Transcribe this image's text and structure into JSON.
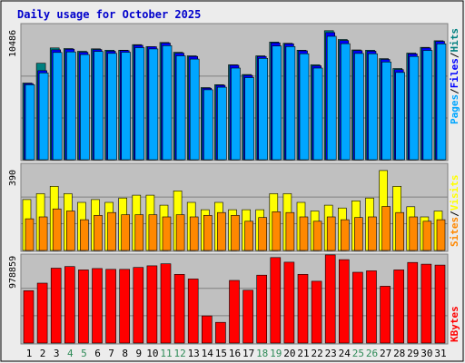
{
  "colors": {
    "background": "#ececec",
    "plot_bg": "#c0c0c0",
    "title": "#0000cc",
    "pages": "#00a6ff",
    "files": "#0000ff",
    "hits": "#008080",
    "visits": "#ffff00",
    "sites": "#ff8800",
    "kbytes": "#ff0000",
    "weekend_label": "#2e8b57",
    "weekday_label": "#000000"
  },
  "chart_data": {
    "type": "bar",
    "title": "Daily usage for October 2025",
    "days": [
      "1",
      "2",
      "3",
      "4",
      "5",
      "6",
      "7",
      "8",
      "9",
      "10",
      "11",
      "12",
      "13",
      "14",
      "15",
      "16",
      "17",
      "18",
      "19",
      "20",
      "21",
      "22",
      "23",
      "24",
      "25",
      "26",
      "27",
      "28",
      "29",
      "30",
      "31"
    ],
    "weekend_days": [
      "4",
      "5",
      "11",
      "12",
      "18",
      "19",
      "25",
      "26"
    ],
    "panels": [
      {
        "name": "top",
        "ymax": 10486,
        "ymax_label": "10486",
        "ylabel": [
          {
            "text": "Hits",
            "color": "#008080"
          },
          {
            "text": "Files",
            "color": "#0000ff"
          },
          {
            "text": "Pages",
            "color": "#00a6ff"
          }
        ],
        "series": [
          {
            "name": "Hits",
            "color": "#008080",
            "values": [
              6090,
              7660,
              8880,
              8830,
              8610,
              8810,
              8700,
              8700,
              9140,
              8980,
              9310,
              8530,
              8250,
              5730,
              5960,
              7540,
              6770,
              8250,
              9350,
              9250,
              8700,
              7540,
              10250,
              9550,
              8720,
              8700,
              8030,
              7240,
              8470,
              8920,
              9450
            ]
          },
          {
            "name": "Files",
            "color": "#0000ff",
            "values": [
              6050,
              7070,
              8730,
              8780,
              8530,
              8750,
              8620,
              8670,
              9090,
              8970,
              9260,
              8460,
              8200,
              5680,
              5910,
              7500,
              6700,
              8200,
              9280,
              9200,
              8650,
              7460,
              10100,
              9460,
              8660,
              8620,
              7960,
              7160,
              8410,
              8870,
              9400
            ]
          },
          {
            "name": "Pages",
            "color": "#00a6ff",
            "values": [
              5950,
              6900,
              8520,
              8560,
              8350,
              8600,
              8450,
              8530,
              8900,
              8800,
              9060,
              8250,
              7990,
              5560,
              5760,
              7280,
              6520,
              8050,
              9030,
              8990,
              8420,
              7280,
              9800,
              9220,
              8440,
              8420,
              7760,
              6930,
              8200,
              8680,
              9200
            ]
          }
        ]
      },
      {
        "name": "middle",
        "ymax": 390,
        "ymax_label": "390",
        "ylabel": [
          {
            "text": "Visits",
            "color": "#ffff00"
          },
          {
            "text": "Sites",
            "color": "#ff8800"
          }
        ],
        "series": [
          {
            "name": "Visits",
            "color": "#ffff00",
            "values": [
              235,
              262,
              296,
              262,
              222,
              235,
              222,
              242,
              255,
              255,
              209,
              275,
              222,
              188,
              222,
              188,
              188,
              188,
              262,
              262,
              222,
              182,
              209,
              196,
              229,
              242,
              369,
              296,
              202,
              155,
              182
            ]
          },
          {
            "name": "Sites",
            "color": "#ff8800",
            "values": [
              146,
              155,
              192,
              182,
              142,
              162,
              175,
              165,
              165,
              165,
              155,
              165,
              155,
              162,
              175,
              162,
              135,
              152,
              179,
              175,
              155,
              135,
              155,
              142,
              152,
              155,
              203,
              175,
              155,
              135,
              142
            ]
          }
        ]
      },
      {
        "name": "bottom",
        "ymax": 978859,
        "ymax_label": "978859",
        "ylabel": [
          {
            "text": "KBytes",
            "color": "#ff0000"
          }
        ],
        "series": [
          {
            "name": "KBytes",
            "color": "#ff0000",
            "values": [
              594000,
              680000,
              850000,
              868000,
              830000,
              845000,
              836000,
              836000,
              858000,
              876000,
              899000,
              779000,
              727000,
              308000,
              235000,
              710000,
              599000,
              770000,
              970000,
              918000,
              780000,
              701000,
              1000000,
              946000,
              803000,
              820000,
              645000,
              830000,
              914000,
              895000,
              885000
            ]
          }
        ]
      }
    ]
  }
}
